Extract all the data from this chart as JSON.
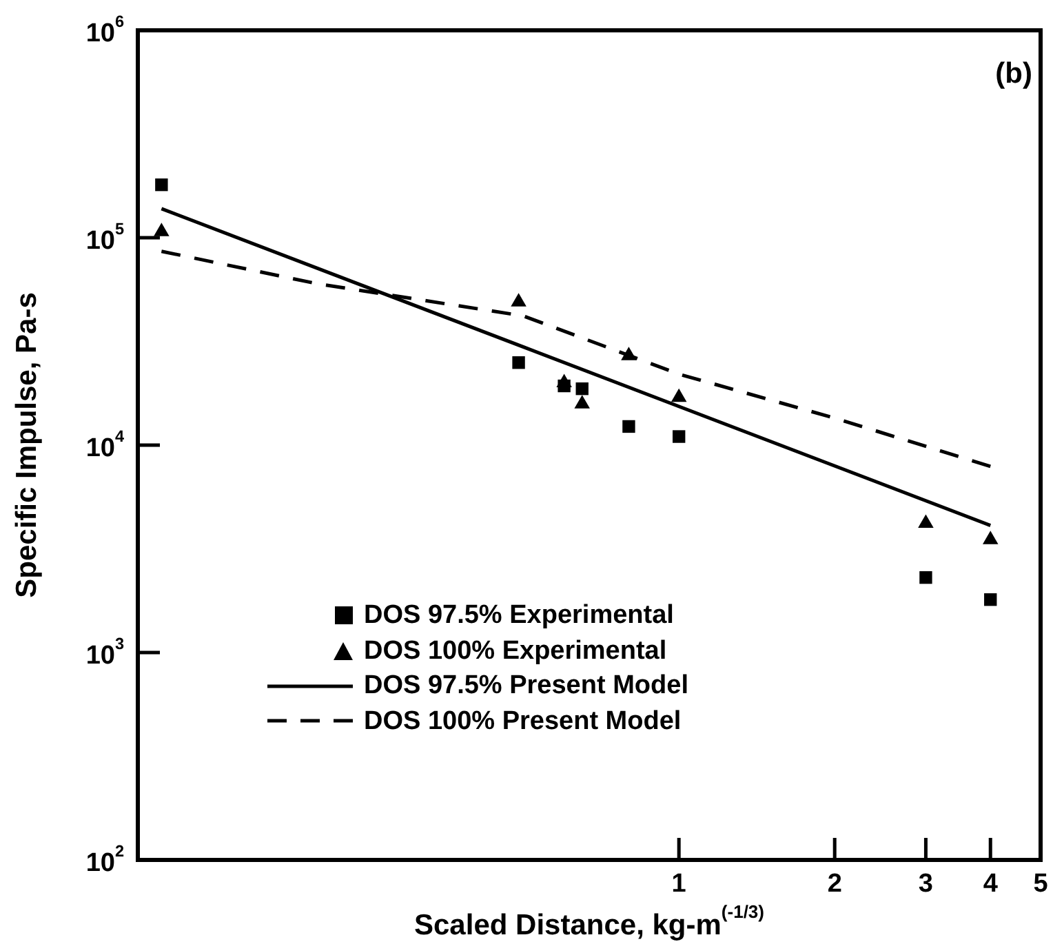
{
  "chart_data": {
    "type": "scatter",
    "xlabel": "Scaled Distance, kg-m$^{(-1/3)}$",
    "ylabel": "Specific Impulse, Pa-s",
    "log": "xy",
    "grid": false,
    "legend": "bottom left",
    "xlim": [
      0.09,
      5
    ],
    "xticks": [
      1,
      2,
      3,
      4,
      5
    ],
    "ylim": [
      100,
      1000000
    ],
    "yticks": [
      {
        "value": 100,
        "label": "10$^{2}$"
      },
      {
        "value": 1000,
        "label": "10$^{3}$"
      },
      {
        "value": 10000,
        "label": "10$^{4}$"
      },
      {
        "value": 100000,
        "label": "10$^{5}$"
      },
      {
        "value": 1000000,
        "label": "10$^{6}$"
      }
    ],
    "annotations": [
      "(b)"
    ],
    "series": [
      {
        "name": "DOS 97.5% Experimental",
        "type": "scatter",
        "marker": "square",
        "color": "#000000",
        "x": [
          0.1,
          0.49,
          0.6,
          0.65,
          0.8,
          1,
          3,
          4
        ],
        "values": [
          180000,
          25000,
          19300,
          18700,
          12300,
          11000,
          2300,
          1800
        ]
      },
      {
        "name": "DOS 100% Experimental",
        "type": "scatter",
        "marker": "triangle",
        "color": "#000000",
        "x": [
          0.1,
          0.49,
          0.6,
          0.65,
          0.8,
          1,
          3,
          4
        ],
        "values": [
          107000,
          49000,
          20000,
          15800,
          27000,
          17000,
          4200,
          3500
        ]
      },
      {
        "name": "DOS 97.5% Present Model",
        "type": "line",
        "marker": "none",
        "line_style": "solid",
        "color": "#000000",
        "x": [
          0.1,
          4
        ],
        "values": [
          138000,
          4100
        ]
      },
      {
        "name": "DOS 100% Present Model",
        "type": "line",
        "marker": "none",
        "line_style": "dashed",
        "color": "#000000",
        "x": [
          0.1,
          0.2,
          0.5,
          1,
          2,
          4
        ],
        "values": [
          86000,
          60000,
          42000,
          22000,
          13500,
          7900
        ]
      }
    ]
  }
}
